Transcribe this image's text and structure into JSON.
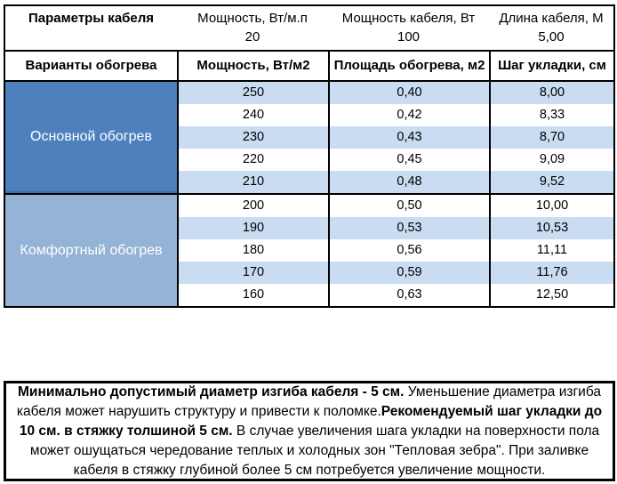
{
  "cable_params": {
    "title": "Параметры кабеля",
    "headers": [
      "Мощность, Вт/м.п",
      "Мощность кабеля, Вт",
      "Длина кабеля, М"
    ],
    "values": [
      "20",
      "100",
      "5,00"
    ]
  },
  "heating_table": {
    "headers": [
      "Варианты обогрева",
      "Мощность, Вт/м2",
      "Площадь обогрева, м2",
      "Шаг укладки, см"
    ],
    "sections": [
      {
        "label": "Основной обогрев",
        "rows": [
          [
            "250",
            "0,40",
            "8,00"
          ],
          [
            "240",
            "0,42",
            "8,33"
          ],
          [
            "230",
            "0,43",
            "8,70"
          ],
          [
            "220",
            "0,45",
            "9,09"
          ],
          [
            "210",
            "0,48",
            "9,52"
          ]
        ]
      },
      {
        "label": "Комфортный обогрев",
        "rows": [
          [
            "200",
            "0,50",
            "10,00"
          ],
          [
            "190",
            "0,53",
            "10,53"
          ],
          [
            "180",
            "0,56",
            "11,11"
          ],
          [
            "170",
            "0,59",
            "11,76"
          ],
          [
            "160",
            "0,63",
            "12,50"
          ]
        ]
      }
    ]
  },
  "note": {
    "segments": [
      {
        "text": "Минимально допустимый диаметр изгиба кабеля - 5 см.",
        "bold": true
      },
      {
        "text": "  Уменьшение диаметра изгиба кабеля может нарушить структуру и привести к поломке.",
        "bold": false
      },
      {
        "text": "Рекомендуемый шаг укладки до 10 см. в стяжку толшиной 5 см.",
        "bold": true
      },
      {
        "text": " В  случае увеличения шага укладки на поверхности пола может ошущаться чередование теплых и холодных зон \"Тепловая зебра\". При заливке кабеля в стяжку глубиной более 5 см потребуется увеличение мощности.",
        "bold": false
      }
    ]
  },
  "colors": {
    "main_section_bg": "#4d80bd",
    "comfort_section_bg": "#95b3d7",
    "stripe_row_bg": "#c9dcf1",
    "plain_row_bg": "#ffffff",
    "section_divider": "#3c6da8",
    "border": "#000000",
    "merged_text": "#ffffff"
  }
}
